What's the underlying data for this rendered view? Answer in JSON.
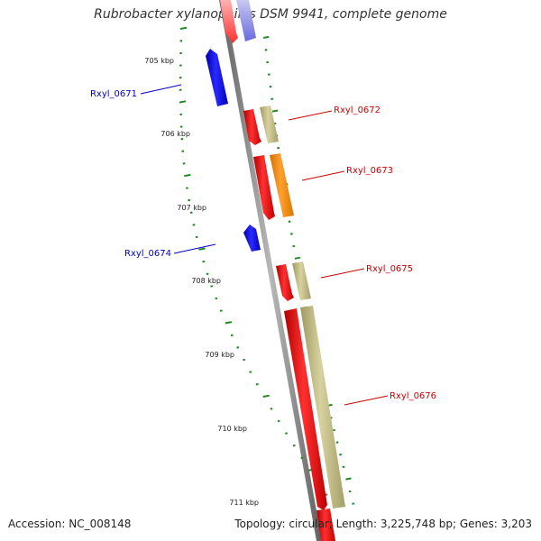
{
  "title": "Rubrobacter xylanophilus DSM 9941, complete genome",
  "footer": {
    "accession": "Accession: NC_008148",
    "topology": "Topology: circular; Length: 3,225,748 bp; Genes: 3,203"
  },
  "ticks": [
    "705 kbp",
    "706 kbp",
    "707 kbp",
    "708 kbp",
    "709 kbp",
    "710 kbp",
    "711 kbp"
  ],
  "genes": {
    "rxyl_0671": "Rxyl_0671",
    "rxyl_0672": "Rxyl_0672",
    "rxyl_0673": "Rxyl_0673",
    "rxyl_0674": "Rxyl_0674",
    "rxyl_0675": "Rxyl_0675",
    "rxyl_0676": "Rxyl_0676"
  },
  "colors": {
    "cds": "#ff0000",
    "cds_reverse": "#0000ff",
    "category_khaki": "#c0b97c",
    "category_orange": "#ff8c00",
    "backbone": "#808080",
    "ticks": "#228822",
    "label_forward": "#cc0000",
    "label_reverse": "#0000cc"
  }
}
